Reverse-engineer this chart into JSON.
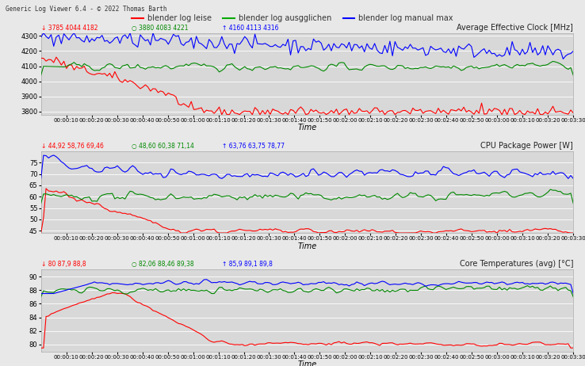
{
  "title_bar": "Generic Log Viewer 6.4 - © 2022 Thomas Barth",
  "legend_labels": [
    "blender log leise",
    "blender log ausgglichen",
    "blender log manual max"
  ],
  "legend_colors": [
    "#ff0000",
    "#00aa00",
    "#0000ff"
  ],
  "chart1_title": "Average Effective Clock [MHz]",
  "chart1_stats_red": "3785 4044 4182",
  "chart1_stats_green": "3880 4083 4221",
  "chart1_stats_blue": "4160 4113 4316",
  "chart1_ylim": [
    3780,
    4320
  ],
  "chart1_yticks": [
    3800,
    3900,
    4000,
    4100,
    4200,
    4300
  ],
  "chart2_title": "CPU Package Power [W]",
  "chart2_stats_red": "44,92 58,76 69,46",
  "chart2_stats_green": "48,60 60,38 71,14",
  "chart2_stats_blue": "63,76 63,75 78,77",
  "chart2_ylim": [
    44,
    80
  ],
  "chart2_yticks": [
    45,
    50,
    55,
    60,
    65,
    70,
    75
  ],
  "chart3_title": "Core Temperatures (avg) [°C]",
  "chart3_stats_red": "80 87,9 88,8",
  "chart3_stats_green": "82,06 88,46 89,38",
  "chart3_stats_blue": "85,9 89,1 89,8",
  "chart3_ylim": [
    79,
    91
  ],
  "chart3_yticks": [
    80,
    82,
    84,
    86,
    88,
    90
  ],
  "time_label": "Time",
  "bg_color": "#e8e8e8",
  "plot_bg_color": "#d8d8d8",
  "window_bg": "#f0f0f0",
  "red": "#ff0000",
  "green": "#008800",
  "blue": "#0000ff",
  "n_points": 210,
  "time_max_seconds": 210
}
